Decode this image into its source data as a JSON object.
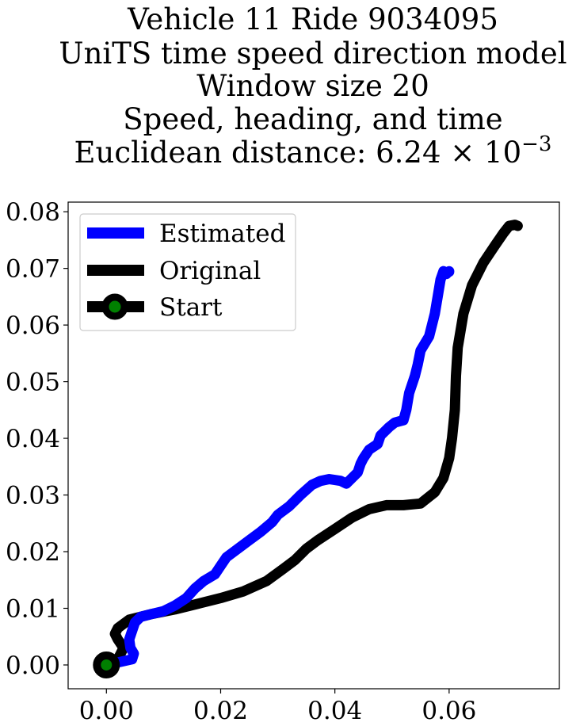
{
  "chart_data": {
    "type": "line",
    "title_lines": [
      "Vehicle 11 Ride 9034095",
      "UniTS time speed direction model",
      "Window size 20",
      "Speed, heading, and time",
      "Euclidean distance: 6.24 × 10",
      "−3"
    ],
    "xlabel": "",
    "ylabel": "",
    "xlim": [
      -0.0067,
      0.0793
    ],
    "ylim": [
      -0.0042,
      0.0817
    ],
    "x_ticks": [
      0.0,
      0.02,
      0.04,
      0.06
    ],
    "x_tick_labels": [
      "0.00",
      "0.02",
      "0.04",
      "0.06"
    ],
    "y_ticks": [
      0.0,
      0.01,
      0.02,
      0.03,
      0.04,
      0.05,
      0.06,
      0.07,
      0.08
    ],
    "y_tick_labels": [
      "0.00",
      "0.01",
      "0.02",
      "0.03",
      "0.04",
      "0.05",
      "0.06",
      "0.07",
      "0.08"
    ],
    "grid": false,
    "legend_position": "upper-left",
    "series": [
      {
        "name": "Estimated",
        "color": "#0000ff",
        "x": [
          0.0,
          0.0045,
          0.0048,
          0.0042,
          0.004,
          0.0045,
          0.005,
          0.006,
          0.008,
          0.01,
          0.012,
          0.014,
          0.0155,
          0.017,
          0.019,
          0.02,
          0.021,
          0.023,
          0.025,
          0.027,
          0.029,
          0.03,
          0.032,
          0.034,
          0.036,
          0.0375,
          0.039,
          0.041,
          0.042,
          0.044,
          0.0445,
          0.045,
          0.046,
          0.0475,
          0.048,
          0.0495,
          0.0505,
          0.052,
          0.0525,
          0.053,
          0.054,
          0.0545,
          0.055,
          0.0565,
          0.0575,
          0.058,
          0.0585,
          0.059,
          0.0595,
          0.06,
          0.06
        ],
        "y": [
          0.0,
          0.001,
          0.002,
          0.003,
          0.0045,
          0.006,
          0.0075,
          0.0085,
          0.009,
          0.0095,
          0.0105,
          0.0118,
          0.0135,
          0.0148,
          0.016,
          0.0175,
          0.019,
          0.0205,
          0.022,
          0.0235,
          0.0252,
          0.0265,
          0.028,
          0.03,
          0.0318,
          0.0325,
          0.0328,
          0.0325,
          0.032,
          0.034,
          0.0355,
          0.0365,
          0.038,
          0.039,
          0.0405,
          0.042,
          0.0428,
          0.0432,
          0.045,
          0.048,
          0.051,
          0.053,
          0.0555,
          0.058,
          0.062,
          0.065,
          0.068,
          0.0695,
          0.069,
          0.0695,
          0.0694
        ]
      },
      {
        "name": "Original",
        "color": "#000000",
        "x": [
          0.0,
          0.002,
          0.003,
          0.002,
          0.0015,
          0.002,
          0.004,
          0.008,
          0.012,
          0.016,
          0.02,
          0.024,
          0.028,
          0.031,
          0.033,
          0.035,
          0.037,
          0.04,
          0.043,
          0.046,
          0.049,
          0.052,
          0.055,
          0.0575,
          0.059,
          0.06,
          0.0605,
          0.061,
          0.0612,
          0.0615,
          0.0625,
          0.064,
          0.066,
          0.068,
          0.0695,
          0.0705,
          0.0715,
          0.072
        ],
        "y": [
          0.0,
          0.001,
          0.003,
          0.0045,
          0.0055,
          0.0065,
          0.008,
          0.009,
          0.0098,
          0.0108,
          0.0118,
          0.013,
          0.0148,
          0.017,
          0.0185,
          0.0205,
          0.022,
          0.024,
          0.026,
          0.0275,
          0.0282,
          0.0282,
          0.0285,
          0.0305,
          0.033,
          0.0365,
          0.04,
          0.045,
          0.051,
          0.056,
          0.062,
          0.067,
          0.071,
          0.074,
          0.0762,
          0.0775,
          0.0777,
          0.0775
        ]
      }
    ],
    "start_marker": {
      "name": "Start",
      "x": 0.0,
      "y": 0.0,
      "edge_color": "#000000",
      "face_color": "#008000"
    },
    "legend": {
      "entries": [
        {
          "label": "Estimated",
          "color": "#0000ff",
          "marker": false
        },
        {
          "label": "Original",
          "color": "#000000",
          "marker": false
        },
        {
          "label": "Start",
          "color": "#000000",
          "marker": true
        }
      ]
    }
  }
}
